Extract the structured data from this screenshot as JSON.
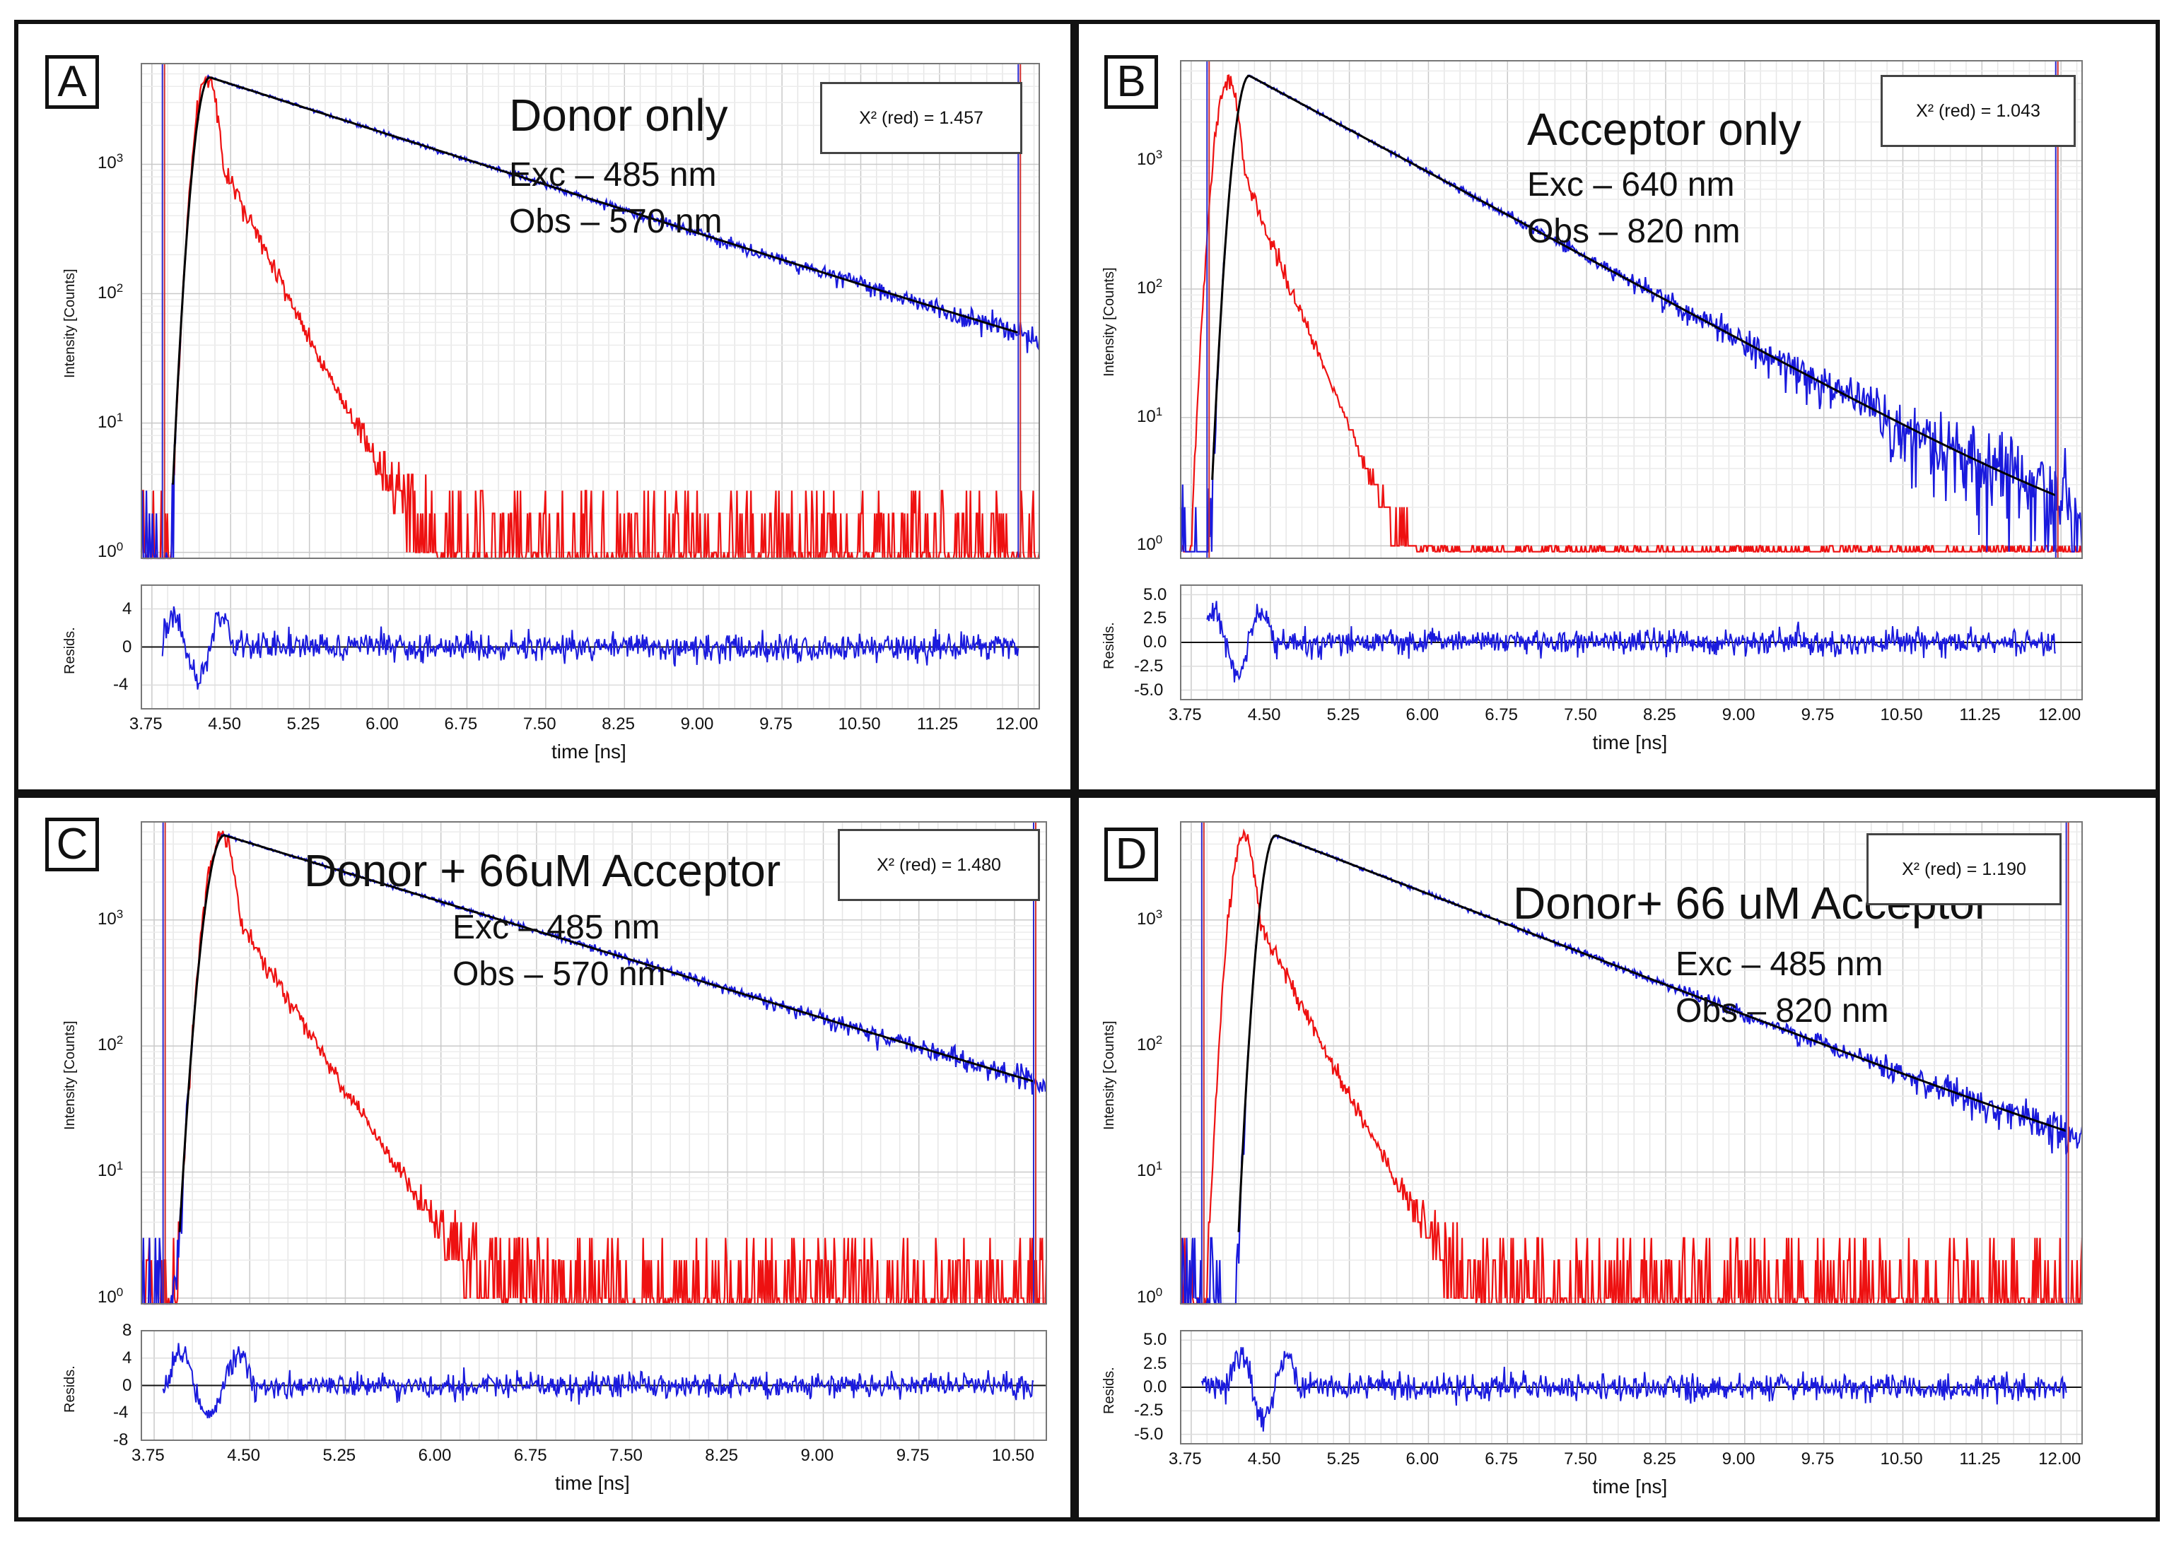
{
  "chart_data": [
    {
      "type": "line",
      "panel": "A",
      "title": "Donor only",
      "excitation": "Exc – 485 nm",
      "observation": "Obs – 570 nm",
      "chi_sq": "X² (red) = 1.457",
      "ylabel": "Intensity [Counts]",
      "resid_label": "Resids.",
      "xlabel": "time [ns]",
      "yscale": "log",
      "ylim": [
        0.9,
        6000
      ],
      "xlim": [
        3.65,
        12.2
      ],
      "x_ticks": [
        "3.75",
        "4.50",
        "5.25",
        "6.00",
        "6.75",
        "7.50",
        "8.25",
        "9.00",
        "9.75",
        "10.50",
        "11.25",
        "12.00"
      ],
      "y_ticks": [
        {
          "base": "10",
          "exp": "0"
        },
        {
          "base": "10",
          "exp": "1"
        },
        {
          "base": "10",
          "exp": "2"
        },
        {
          "base": "10",
          "exp": "3"
        }
      ],
      "resid_ticks": [
        "4",
        "0",
        "-4"
      ],
      "resid_lim": [
        -6.5,
        6.5
      ],
      "fit_window": [
        3.85,
        12.0
      ],
      "series": [
        {
          "name": "IRF",
          "color": "#ee1111",
          "peak_time": 4.28,
          "peak": 4700,
          "tail_lifetime": 0.27,
          "noise_floor": 3
        },
        {
          "name": "Decay",
          "color": "#1a1add",
          "peak_time": 4.3,
          "peak": 4700,
          "lifetime": 1.67,
          "offset": 3.2
        },
        {
          "name": "Fit",
          "color": "#000000",
          "peak_time": 4.3,
          "peak": 4700,
          "lifetime": 1.67,
          "offset": 3.2
        }
      ]
    },
    {
      "type": "line",
      "panel": "B",
      "title": "Acceptor only",
      "excitation": "Exc – 640 nm",
      "observation": "Obs – 820 nm",
      "chi_sq": "X² (red) = 1.043",
      "ylabel": "Intensity [Counts]",
      "resid_label": "Resids.",
      "xlabel": "time [ns]",
      "yscale": "log",
      "ylim": [
        0.8,
        6000
      ],
      "xlim": [
        3.65,
        12.2
      ],
      "x_ticks": [
        "3.75",
        "4.50",
        "5.25",
        "6.00",
        "6.75",
        "7.50",
        "8.25",
        "9.00",
        "9.75",
        "10.50",
        "11.25",
        "12.00"
      ],
      "y_ticks": [
        {
          "base": "10",
          "exp": "0"
        },
        {
          "base": "10",
          "exp": "1"
        },
        {
          "base": "10",
          "exp": "2"
        },
        {
          "base": "10",
          "exp": "3"
        }
      ],
      "resid_ticks": [
        "5.0",
        "2.5",
        "0.0",
        "-2.5",
        "-5.0"
      ],
      "resid_lim": [
        -6.0,
        6.0
      ],
      "fit_window": [
        3.9,
        11.95
      ],
      "series": [
        {
          "name": "IRF",
          "color": "#ee1111",
          "peak_time": 4.1,
          "peak": 4300,
          "tail_lifetime": 0.22,
          "noise_floor": 1
        },
        {
          "name": "Decay",
          "color": "#1a1add",
          "peak_time": 4.3,
          "peak": 4600,
          "lifetime": 0.98,
          "offset": 0.6
        },
        {
          "name": "Fit",
          "color": "#000000",
          "peak_time": 4.3,
          "peak": 4600,
          "lifetime": 0.98,
          "offset": 0.6
        }
      ]
    },
    {
      "type": "line",
      "panel": "C",
      "title": "Donor + 66uM Acceptor",
      "excitation": "Exc – 485 nm",
      "observation": "Obs – 570 nm",
      "chi_sq": "X² (red) = 1.480",
      "ylabel": "Intensity [Counts]",
      "resid_label": "Resids.",
      "xlabel": "time [ns]",
      "yscale": "log",
      "ylim": [
        0.9,
        6000
      ],
      "xlim": [
        3.65,
        10.75
      ],
      "x_ticks": [
        "3.75",
        "4.50",
        "5.25",
        "6.00",
        "6.75",
        "7.50",
        "8.25",
        "9.00",
        "9.75",
        "10.50"
      ],
      "y_ticks": [
        {
          "base": "10",
          "exp": "0"
        },
        {
          "base": "10",
          "exp": "1"
        },
        {
          "base": "10",
          "exp": "2"
        },
        {
          "base": "10",
          "exp": "3"
        }
      ],
      "resid_ticks": [
        "8",
        "4",
        "0",
        "-4",
        "-8"
      ],
      "resid_lim": [
        -8,
        8
      ],
      "fit_window": [
        3.82,
        10.65
      ],
      "series": [
        {
          "name": "IRF",
          "color": "#ee1111",
          "peak_time": 4.28,
          "peak": 4700,
          "tail_lifetime": 0.27,
          "noise_floor": 3
        },
        {
          "name": "Decay",
          "color": "#1a1add",
          "peak_time": 4.3,
          "peak": 4700,
          "lifetime": 1.4,
          "offset": 2.0
        },
        {
          "name": "Fit",
          "color": "#000000",
          "peak_time": 4.3,
          "peak": 4700,
          "lifetime": 1.4,
          "offset": 2.0
        }
      ]
    },
    {
      "type": "line",
      "panel": "D",
      "title": "Donor+ 66 uM Acceptor",
      "excitation": "Exc – 485 nm",
      "observation": "Obs – 820 nm",
      "chi_sq": "X² (red) = 1.190",
      "ylabel": "Intensity [Counts]",
      "resid_label": "Resids.",
      "xlabel": "time [ns]",
      "yscale": "log",
      "ylim": [
        0.9,
        6000
      ],
      "xlim": [
        3.65,
        12.2
      ],
      "x_ticks": [
        "3.75",
        "4.50",
        "5.25",
        "6.00",
        "6.75",
        "7.50",
        "8.25",
        "9.00",
        "9.75",
        "10.50",
        "11.25",
        "12.00"
      ],
      "y_ticks": [
        {
          "base": "10",
          "exp": "0"
        },
        {
          "base": "10",
          "exp": "1"
        },
        {
          "base": "10",
          "exp": "2"
        },
        {
          "base": "10",
          "exp": "3"
        }
      ],
      "resid_ticks": [
        "5.0",
        "2.5",
        "0.0",
        "-2.5",
        "-5.0"
      ],
      "resid_lim": [
        -6.0,
        6.0
      ],
      "fit_window": [
        3.85,
        12.05
      ],
      "series": [
        {
          "name": "IRF",
          "color": "#ee1111",
          "peak_time": 4.25,
          "peak": 4700,
          "tail_lifetime": 0.27,
          "noise_floor": 3
        },
        {
          "name": "Decay",
          "color": "#1a1add",
          "peak_time": 4.55,
          "peak": 4700,
          "lifetime": 1.35,
          "offset": 3.0
        },
        {
          "name": "Fit",
          "color": "#000000",
          "peak_time": 4.55,
          "peak": 4700,
          "lifetime": 1.35,
          "offset": 3.0
        }
      ]
    }
  ]
}
